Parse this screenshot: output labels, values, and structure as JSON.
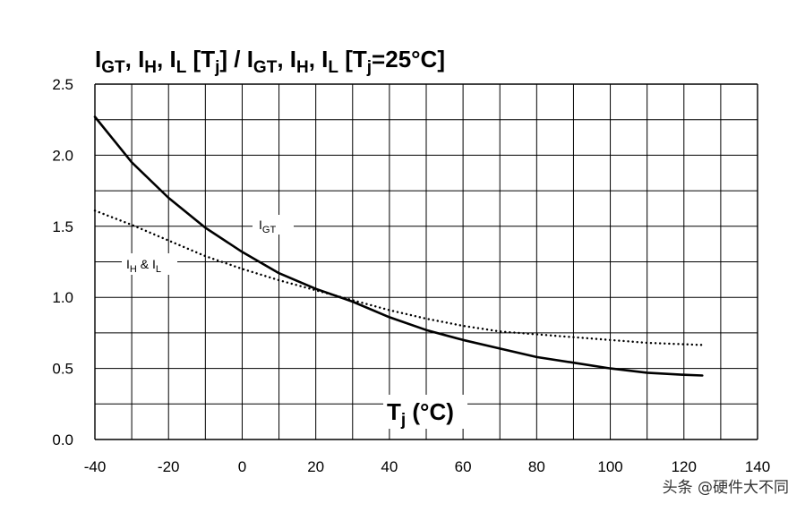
{
  "chart_data": {
    "type": "line",
    "title": {
      "parts": [
        {
          "text": "I",
          "sub": "GT"
        },
        {
          "text": ", I",
          "sub": "H"
        },
        {
          "text": ", I",
          "sub": "L"
        },
        {
          "text": " [T",
          "sub": "j"
        },
        {
          "text": "] / I",
          "sub": "GT"
        },
        {
          "text": ", I",
          "sub": "H"
        },
        {
          "text": ", I",
          "sub": "L"
        },
        {
          "text": " [T",
          "sub": "j"
        },
        {
          "text": "=25°C]",
          "sub": ""
        }
      ]
    },
    "xlabel": {
      "main": "T",
      "sub": "j",
      "rest": " (°C)"
    },
    "xlim": [
      -40,
      140
    ],
    "ylim": [
      0,
      2.5
    ],
    "x_ticks": [
      "-40",
      "-20",
      "0",
      "20",
      "40",
      "60",
      "80",
      "100",
      "120",
      "140"
    ],
    "y_ticks": [
      "0.0",
      "0.5",
      "1.0",
      "1.5",
      "2.0",
      "2.5"
    ],
    "grid": true,
    "series": [
      {
        "name": "IGT",
        "label": {
          "main": "I",
          "sub": "GT"
        },
        "style": "solid",
        "x": [
          -40,
          -30,
          -20,
          -10,
          0,
          10,
          20,
          30,
          40,
          50,
          60,
          70,
          80,
          90,
          100,
          110,
          120,
          125
        ],
        "y": [
          2.27,
          1.95,
          1.7,
          1.49,
          1.32,
          1.17,
          1.06,
          0.97,
          0.86,
          0.77,
          0.7,
          0.64,
          0.58,
          0.54,
          0.5,
          0.47,
          0.455,
          0.45
        ]
      },
      {
        "name": "IH & IL",
        "label": {
          "main": "I",
          "sub": "H",
          "mid": " & I",
          "sub2": "L"
        },
        "style": "dotted",
        "x": [
          -40,
          -30,
          -20,
          -10,
          0,
          10,
          20,
          30,
          40,
          50,
          60,
          70,
          80,
          90,
          100,
          110,
          120,
          125
        ],
        "y": [
          1.61,
          1.51,
          1.4,
          1.29,
          1.2,
          1.12,
          1.05,
          0.98,
          0.91,
          0.85,
          0.8,
          0.76,
          0.74,
          0.72,
          0.7,
          0.68,
          0.67,
          0.665
        ]
      }
    ]
  },
  "watermark": "头条 @硬件大不同"
}
